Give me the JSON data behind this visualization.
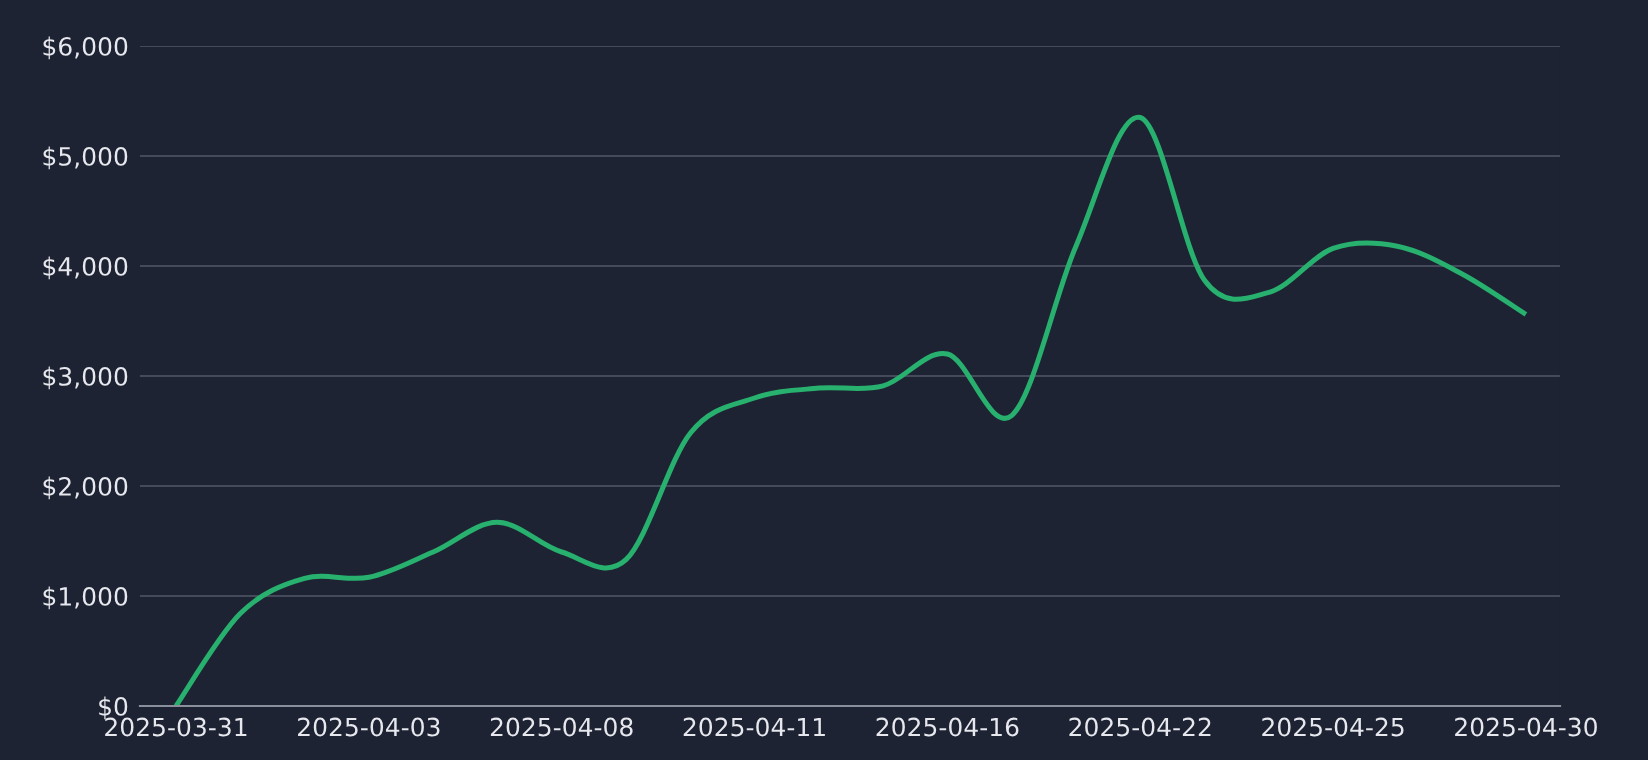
{
  "chart_data": {
    "type": "line",
    "categories": [
      "2025-03-31",
      null,
      null,
      "2025-04-03",
      null,
      null,
      "2025-04-08",
      null,
      null,
      "2025-04-11",
      null,
      null,
      "2025-04-16",
      null,
      null,
      "2025-04-22",
      null,
      null,
      "2025-04-25",
      null,
      null,
      "2025-04-30"
    ],
    "series": [
      {
        "color": "#27b06e",
        "values": [
          0,
          840,
          1160,
          1170,
          1400,
          1670,
          1400,
          1330,
          2480,
          2800,
          2890,
          2910,
          3200,
          2640,
          4180,
          5350,
          3870,
          3760,
          4160,
          4180,
          3930,
          3560
        ]
      }
    ],
    "ylim": [
      0,
      6000
    ],
    "yticks": [
      {
        "value": 0,
        "label": "$0"
      },
      {
        "value": 1000,
        "label": "$1,000"
      },
      {
        "value": 2000,
        "label": "$2,000"
      },
      {
        "value": 3000,
        "label": "$3,000"
      },
      {
        "value": 4000,
        "label": "$4,000"
      },
      {
        "value": 5000,
        "label": "$5,000"
      },
      {
        "value": 6000,
        "label": "$6,000"
      }
    ],
    "grid": "y",
    "marker": "none",
    "line_style": "solid",
    "legend": false
  }
}
